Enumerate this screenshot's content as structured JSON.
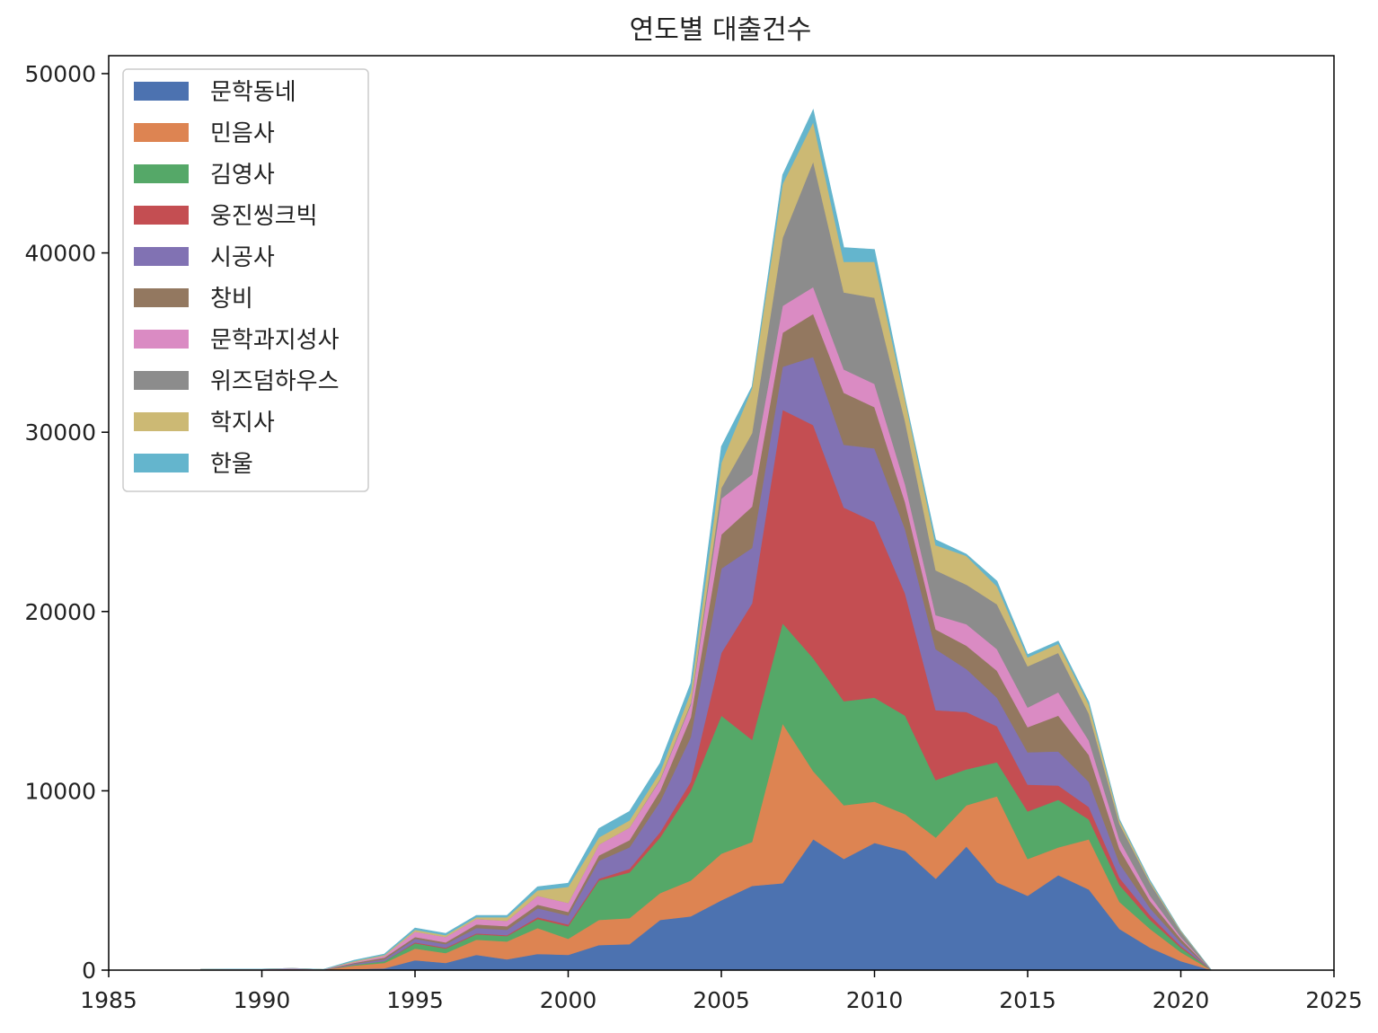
{
  "chart_data": {
    "type": "area",
    "stacked": true,
    "title": "연도별 대출건수",
    "xlabel": "",
    "ylabel": "",
    "xlim": [
      1985,
      2025
    ],
    "ylim": [
      0,
      51000
    ],
    "x_ticks": [
      1985,
      1990,
      1995,
      2000,
      2005,
      2010,
      2015,
      2020,
      2025
    ],
    "y_ticks": [
      0,
      10000,
      20000,
      30000,
      40000,
      50000
    ],
    "grid": false,
    "legend_position": "top-left",
    "x": [
      1988,
      1989,
      1990,
      1991,
      1992,
      1993,
      1994,
      1995,
      1996,
      1997,
      1998,
      1999,
      2000,
      2001,
      2002,
      2003,
      2004,
      2005,
      2006,
      2007,
      2008,
      2009,
      2010,
      2011,
      2012,
      2013,
      2014,
      2015,
      2016,
      2017,
      2018,
      2019,
      2020,
      2021,
      2022,
      2023,
      2024,
      2025
    ],
    "series": [
      {
        "name": "문학동네",
        "color": "#4c72b0",
        "values": [
          0,
          0,
          0,
          0,
          0,
          50,
          100,
          550,
          400,
          850,
          600,
          900,
          850,
          1400,
          1450,
          2800,
          3000,
          3900,
          4700,
          4850,
          7300,
          6200,
          7100,
          6650,
          5100,
          6900,
          4900,
          4150,
          5300,
          4500,
          2300,
          1250,
          500,
          0,
          0,
          0,
          0,
          0
        ]
      },
      {
        "name": "민음사",
        "color": "#dd8452",
        "values": [
          20,
          30,
          30,
          60,
          20,
          200,
          300,
          650,
          550,
          850,
          1000,
          1450,
          900,
          1400,
          1450,
          1500,
          2000,
          2600,
          2450,
          8900,
          3800,
          3000,
          2300,
          2050,
          2300,
          2300,
          4800,
          2050,
          1550,
          2800,
          1500,
          1050,
          500,
          0,
          0,
          0,
          0,
          0
        ]
      },
      {
        "name": "김영사",
        "color": "#55a868",
        "values": [
          0,
          0,
          0,
          0,
          0,
          50,
          100,
          300,
          250,
          300,
          300,
          500,
          700,
          2200,
          2550,
          3100,
          5000,
          7700,
          5700,
          5600,
          6300,
          5800,
          5800,
          5500,
          3200,
          2000,
          1900,
          2650,
          2650,
          1100,
          950,
          500,
          250,
          0,
          0,
          0,
          0,
          0
        ]
      },
      {
        "name": "웅진씽크빅",
        "color": "#c44e52",
        "values": [
          0,
          0,
          0,
          0,
          0,
          0,
          0,
          50,
          50,
          50,
          50,
          100,
          100,
          100,
          200,
          300,
          500,
          3500,
          7600,
          11900,
          13000,
          10800,
          9800,
          6800,
          3900,
          3200,
          2000,
          1500,
          800,
          700,
          400,
          250,
          100,
          0,
          0,
          0,
          0,
          0
        ]
      },
      {
        "name": "시공사",
        "color": "#8172b3",
        "values": [
          0,
          0,
          0,
          0,
          0,
          50,
          100,
          200,
          200,
          300,
          300,
          500,
          500,
          1000,
          1200,
          1700,
          2500,
          4700,
          3100,
          2400,
          3800,
          3500,
          4100,
          3600,
          3400,
          2400,
          1600,
          1800,
          1900,
          1400,
          800,
          400,
          200,
          0,
          0,
          0,
          0,
          0
        ]
      },
      {
        "name": "창비",
        "color": "#937860",
        "values": [
          0,
          0,
          0,
          0,
          0,
          50,
          100,
          100,
          100,
          200,
          200,
          200,
          200,
          300,
          400,
          600,
          1100,
          1900,
          2300,
          1900,
          2400,
          2900,
          2300,
          1500,
          1100,
          1300,
          1500,
          1400,
          2000,
          1500,
          800,
          400,
          200,
          0,
          0,
          0,
          0,
          0
        ]
      },
      {
        "name": "문학과지성사",
        "color": "#da8bc3",
        "values": [
          30,
          30,
          30,
          40,
          20,
          50,
          100,
          300,
          300,
          300,
          300,
          500,
          500,
          600,
          700,
          600,
          700,
          2000,
          1800,
          1500,
          1500,
          1300,
          1300,
          1000,
          800,
          1200,
          1200,
          1100,
          1300,
          800,
          500,
          300,
          100,
          0,
          0,
          0,
          0,
          0
        ]
      },
      {
        "name": "위즈덤하우스",
        "color": "#8c8c8c",
        "values": [
          0,
          0,
          0,
          0,
          0,
          0,
          0,
          0,
          0,
          0,
          0,
          0,
          0,
          0,
          0,
          50,
          100,
          600,
          2300,
          3800,
          7000,
          4300,
          4800,
          3500,
          2500,
          2200,
          2500,
          2300,
          2200,
          1500,
          900,
          700,
          300,
          0,
          0,
          0,
          0,
          0
        ]
      },
      {
        "name": "학지사",
        "color": "#ccb974",
        "values": [
          0,
          0,
          0,
          0,
          0,
          50,
          50,
          100,
          100,
          100,
          200,
          300,
          900,
          400,
          400,
          400,
          600,
          1400,
          2500,
          3000,
          2200,
          1700,
          2000,
          1200,
          1400,
          1600,
          1000,
          500,
          500,
          500,
          200,
          100,
          50,
          0,
          0,
          0,
          0,
          0
        ]
      },
      {
        "name": "한울",
        "color": "#64b5cd",
        "values": [
          0,
          0,
          0,
          0,
          0,
          50,
          50,
          100,
          100,
          100,
          100,
          200,
          200,
          500,
          500,
          500,
          500,
          900,
          100,
          500,
          700,
          800,
          700,
          100,
          300,
          100,
          300,
          150,
          150,
          150,
          50,
          50,
          0,
          0,
          0,
          0,
          0,
          0
        ]
      }
    ]
  }
}
